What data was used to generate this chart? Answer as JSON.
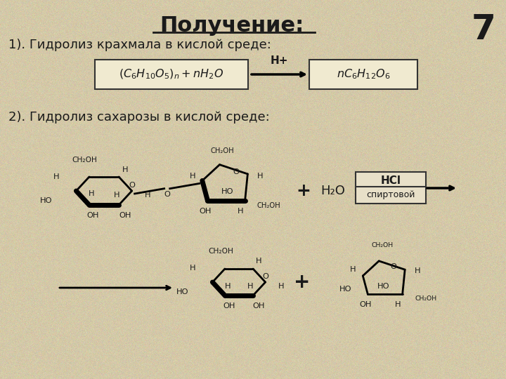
{
  "background_color": "#d4c9a8",
  "title": "Получение:",
  "title_fontsize": 22,
  "slide_number": "7",
  "slide_number_fontsize": 36,
  "text1": "1). Гидролиз крахмала в кислой среде:",
  "text1_fontsize": 13,
  "text2": "2). Гидролиз сахарозы в кислой среде:",
  "text2_fontsize": 13,
  "text_color": "#1a1a1a",
  "box_bg": "#f0ead0",
  "box_border": "#333333",
  "hcl_box_bg": "#e8e0c8",
  "h_plus": "H+",
  "h2o_text": "H₂O",
  "hcl_text": "HCl",
  "spirt_text": "спиртовой",
  "ch2oh": "CH₂OH",
  "plus": "+"
}
